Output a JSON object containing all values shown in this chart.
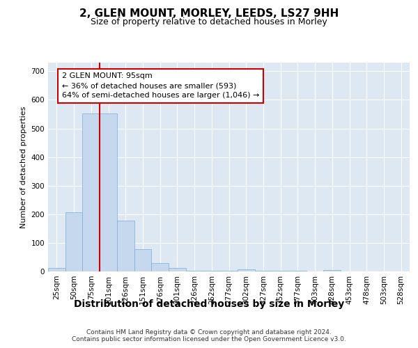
{
  "title1": "2, GLEN MOUNT, MORLEY, LEEDS, LS27 9HH",
  "title2": "Size of property relative to detached houses in Morley",
  "xlabel": "Distribution of detached houses by size in Morley",
  "ylabel": "Number of detached properties",
  "bar_categories": [
    "25sqm",
    "50sqm",
    "75sqm",
    "101sqm",
    "126sqm",
    "151sqm",
    "176sqm",
    "201sqm",
    "226sqm",
    "252sqm",
    "277sqm",
    "302sqm",
    "327sqm",
    "352sqm",
    "377sqm",
    "403sqm",
    "428sqm",
    "453sqm",
    "478sqm",
    "503sqm",
    "528sqm"
  ],
  "bar_values": [
    13,
    207,
    552,
    552,
    178,
    78,
    29,
    12,
    2,
    2,
    2,
    8,
    2,
    2,
    2,
    0,
    5,
    0,
    0,
    0,
    0
  ],
  "bar_color": "#c5d8ee",
  "bar_edge_color": "#7aadd4",
  "vline_x_index": 3,
  "vline_color": "#cc0000",
  "annotation_text": "2 GLEN MOUNT: 95sqm\n← 36% of detached houses are smaller (593)\n64% of semi-detached houses are larger (1,046) →",
  "annotation_box_color": "#ffffff",
  "annotation_box_edge_color": "#cc0000",
  "ylim": [
    0,
    730
  ],
  "yticks": [
    0,
    100,
    200,
    300,
    400,
    500,
    600,
    700
  ],
  "background_color": "#dde8f3",
  "grid_color": "#ffffff",
  "footer_text": "Contains HM Land Registry data © Crown copyright and database right 2024.\nContains public sector information licensed under the Open Government Licence v3.0.",
  "title1_fontsize": 11,
  "title2_fontsize": 9,
  "xlabel_fontsize": 10,
  "ylabel_fontsize": 8,
  "tick_fontsize": 7.5,
  "annotation_fontsize": 8,
  "footer_fontsize": 6.5
}
